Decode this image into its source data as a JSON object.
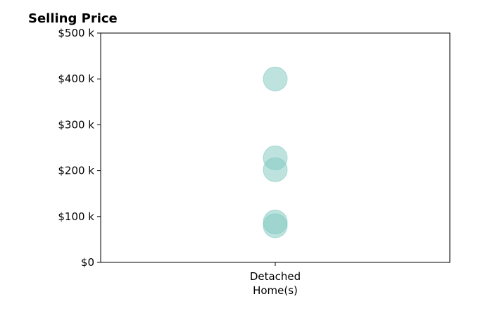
{
  "chart_data": {
    "type": "scatter",
    "title": "Selling Price",
    "categories": [
      "Detached\nHome(s)"
    ],
    "series": [
      {
        "category": "Detached\nHome(s)",
        "values": [
          400000,
          228000,
          202000,
          88000,
          80000
        ]
      }
    ],
    "ylim": [
      0,
      500000
    ],
    "yticks": [
      {
        "value": 0,
        "label": "$0"
      },
      {
        "value": 100000,
        "label": "$100 k"
      },
      {
        "value": 200000,
        "label": "$200 k"
      },
      {
        "value": 300000,
        "label": "$300 k"
      },
      {
        "value": 400000,
        "label": "$400 k"
      },
      {
        "value": 500000,
        "label": "$500 k"
      }
    ],
    "marker_color": "#7ec8bf",
    "grid": false
  }
}
